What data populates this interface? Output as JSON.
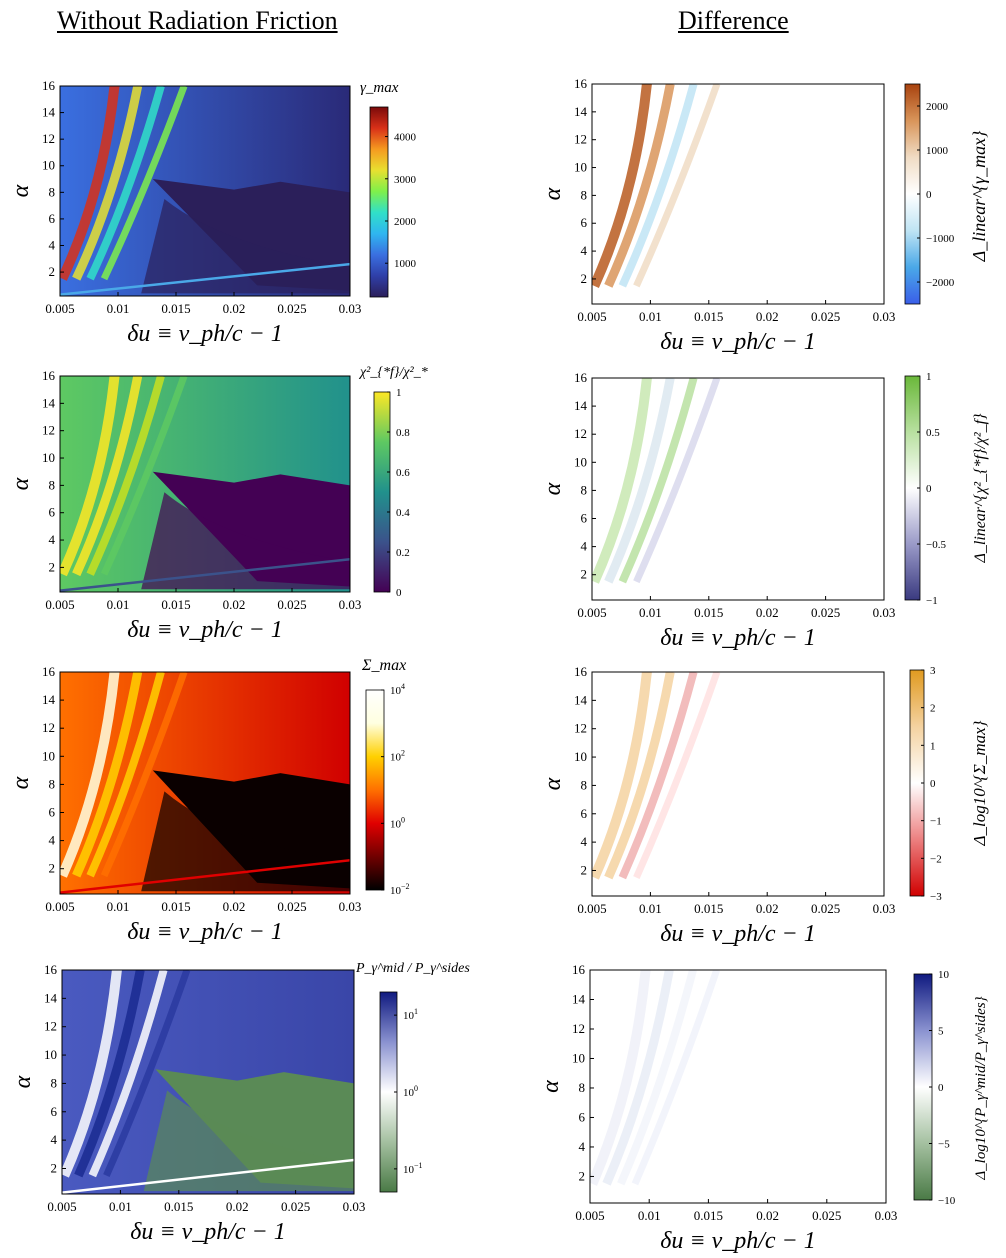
{
  "headings": {
    "left": "Without Radiation Friction",
    "right": "Difference"
  },
  "chart_data": [
    {
      "type": "heatmap",
      "panel": "row1-left",
      "quantity": "gamma_max",
      "colorbar_label": "γ_max",
      "colorbar_range": [
        200,
        4700
      ],
      "colorbar_scale": "linear",
      "colorbar_ticks": [
        "1000",
        "2000",
        "3000",
        "4000"
      ],
      "colormap": "jet",
      "xlabel": "δu ≡ v_ph/c − 1",
      "ylabel": "α",
      "xlim": [
        0.005,
        0.03
      ],
      "ylim": [
        0.2,
        16
      ],
      "xticks": [
        "0.005",
        "0.01",
        "0.015",
        "0.02",
        "0.025",
        "0.03"
      ],
      "yticks": [
        "2",
        "4",
        "6",
        "8",
        "10",
        "12",
        "14",
        "16"
      ]
    },
    {
      "type": "heatmap",
      "panel": "row1-right",
      "quantity": "Delta_linear gamma_max",
      "colorbar_label": "Δ_linear^{γ_max}",
      "colorbar_range": [
        -2500,
        2500
      ],
      "colorbar_scale": "linear",
      "colorbar_ticks": [
        "2000",
        "1000",
        "0",
        "-1000",
        "-2000"
      ],
      "colormap": "blue-white-brown diverging",
      "xlabel": "δu ≡ v_ph/c − 1",
      "ylabel": "α",
      "xlim": [
        0.005,
        0.03
      ],
      "ylim": [
        0.2,
        16
      ],
      "xticks": [
        "0.005",
        "0.01",
        "0.015",
        "0.02",
        "0.025",
        "0.03"
      ],
      "yticks": [
        "2",
        "4",
        "6",
        "8",
        "10",
        "12",
        "14",
        "16"
      ]
    },
    {
      "type": "heatmap",
      "panel": "row2-left",
      "quantity": "chi_*f^2 / chi_*^2",
      "colorbar_label": "χ²_{*f}/χ²_*",
      "colorbar_range": [
        0,
        1
      ],
      "colorbar_scale": "linear",
      "colorbar_ticks": [
        "1",
        "0.8",
        "0.6",
        "0.4",
        "0.2",
        "0"
      ],
      "colormap": "viridis",
      "xlabel": "δu ≡ v_ph/c − 1",
      "ylabel": "α",
      "xlim": [
        0.005,
        0.03
      ],
      "ylim": [
        0.2,
        16
      ],
      "xticks": [
        "0.005",
        "0.01",
        "0.015",
        "0.02",
        "0.025",
        "0.03"
      ],
      "yticks": [
        "2",
        "4",
        "6",
        "8",
        "10",
        "12",
        "14",
        "16"
      ]
    },
    {
      "type": "heatmap",
      "panel": "row2-right",
      "quantity": "Delta_linear chi ratio",
      "colorbar_label": "Δ_linear^{χ²_{*f}/χ²_f}",
      "colorbar_range": [
        -1,
        1
      ],
      "colorbar_scale": "linear",
      "colorbar_ticks": [
        "1",
        "0.5",
        "0",
        "-0.5",
        "-1"
      ],
      "colormap": "purple-white-green diverging",
      "xlabel": "δu ≡ v_ph/c − 1",
      "ylabel": "α",
      "xlim": [
        0.005,
        0.03
      ],
      "ylim": [
        0.2,
        16
      ],
      "xticks": [
        "0.005",
        "0.01",
        "0.015",
        "0.02",
        "0.025",
        "0.03"
      ],
      "yticks": [
        "2",
        "4",
        "6",
        "8",
        "10",
        "12",
        "14",
        "16"
      ]
    },
    {
      "type": "heatmap",
      "panel": "row3-left",
      "quantity": "Sigma_max",
      "colorbar_label": "Σ_max",
      "colorbar_range": [
        0.01,
        10000
      ],
      "colorbar_scale": "log",
      "colorbar_ticks": [
        "10^4",
        "10^2",
        "10^0",
        "10^-2"
      ],
      "colormap": "hot",
      "xlabel": "δu ≡ v_ph/c − 1",
      "ylabel": "α",
      "xlim": [
        0.005,
        0.03
      ],
      "ylim": [
        0.2,
        16
      ],
      "xticks": [
        "0.005",
        "0.01",
        "0.015",
        "0.02",
        "0.025",
        "0.03"
      ],
      "yticks": [
        "2",
        "4",
        "6",
        "8",
        "10",
        "12",
        "14",
        "16"
      ]
    },
    {
      "type": "heatmap",
      "panel": "row3-right",
      "quantity": "Delta_log10 Sigma_max",
      "colorbar_label": "Δ_log10^{Σ_max}",
      "colorbar_range": [
        -3,
        3
      ],
      "colorbar_scale": "linear",
      "colorbar_ticks": [
        "3",
        "2",
        "1",
        "0",
        "-1",
        "-2",
        "-3"
      ],
      "colormap": "red-white-orange diverging",
      "xlabel": "δu ≡ v_ph/c − 1",
      "ylabel": "α",
      "xlim": [
        0.005,
        0.03
      ],
      "ylim": [
        0.2,
        16
      ],
      "xticks": [
        "0.005",
        "0.01",
        "0.015",
        "0.02",
        "0.025",
        "0.03"
      ],
      "yticks": [
        "2",
        "4",
        "6",
        "8",
        "10",
        "12",
        "14",
        "16"
      ]
    },
    {
      "type": "heatmap",
      "panel": "row4-left",
      "quantity": "P_gamma^mid / P_gamma^sides",
      "colorbar_label": "P_γ^mid / P_γ^sides",
      "colorbar_range": [
        0.05,
        20
      ],
      "colorbar_scale": "log",
      "colorbar_ticks": [
        "10^1",
        "10^0",
        "10^-1"
      ],
      "colormap": "green-white-blue diverging",
      "xlabel": "δu ≡ v_ph/c − 1",
      "ylabel": "α",
      "xlim": [
        0.005,
        0.03
      ],
      "ylim": [
        0.2,
        16
      ],
      "xticks": [
        "0.005",
        "0.01",
        "0.015",
        "0.02",
        "0.025",
        "0.03"
      ],
      "yticks": [
        "2",
        "4",
        "6",
        "8",
        "10",
        "12",
        "14",
        "16"
      ]
    },
    {
      "type": "heatmap",
      "panel": "row4-right",
      "quantity": "Delta_log10 P ratio",
      "colorbar_label": "Δ_log10^{P_γ^mid/P_γ^sides}",
      "colorbar_range": [
        -10,
        10
      ],
      "colorbar_scale": "linear",
      "colorbar_ticks": [
        "10",
        "5",
        "0",
        "-5",
        "-10"
      ],
      "colormap": "green-white-blue diverging",
      "xlabel": "δu ≡ v_ph/c − 1",
      "ylabel": "α",
      "xlim": [
        0.005,
        0.03
      ],
      "ylim": [
        0.2,
        16
      ],
      "xticks": [
        "0.005",
        "0.01",
        "0.015",
        "0.02",
        "0.025",
        "0.03"
      ],
      "yticks": [
        "2",
        "4",
        "6",
        "8",
        "10",
        "12",
        "14",
        "16"
      ]
    }
  ]
}
